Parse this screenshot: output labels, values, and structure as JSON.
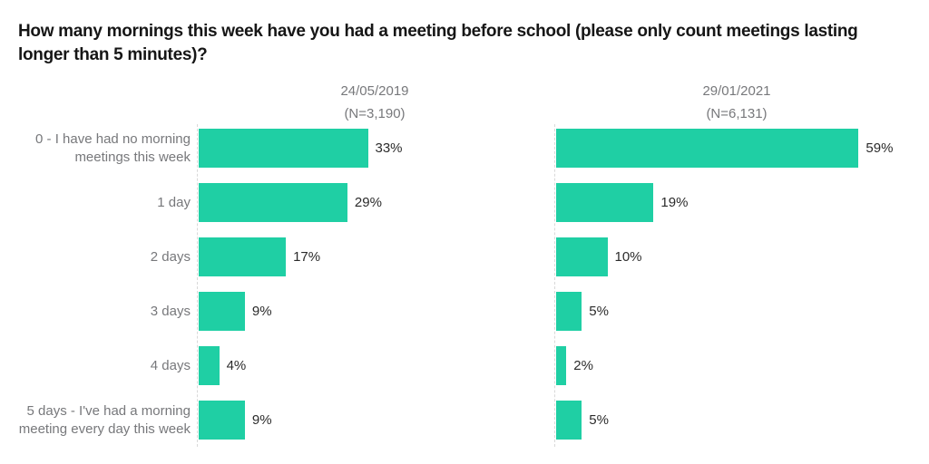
{
  "title": "How many mornings this week have you had a meeting before school (please only count meetings lasting longer than 5 minutes)?",
  "colors": {
    "bar": "#1fcfa4",
    "title_text": "#161616",
    "label_text": "#77787b",
    "value_text": "#2b2b2b",
    "axis_line": "#d9d9d9"
  },
  "chart_data": {
    "type": "bar",
    "orientation": "horizontal",
    "title": "How many mornings this week have you had a meeting before school (please only count meetings lasting longer than 5 minutes)?",
    "categories": [
      "0 - I have had no morning meetings this week",
      "1 day",
      "2 days",
      "3 days",
      "4 days",
      "5 days - I've had a morning meeting every day this week"
    ],
    "series": [
      {
        "name": "24/05/2019",
        "n_label": "(N=3,190)",
        "values": [
          33,
          29,
          17,
          9,
          4,
          9
        ]
      },
      {
        "name": "29/01/2021",
        "n_label": "(N=6,131)",
        "values": [
          59,
          19,
          10,
          5,
          2,
          5
        ]
      }
    ],
    "value_suffix": "%",
    "xlim": [
      0,
      100
    ],
    "grid": false,
    "data_labels": true,
    "legend_position": "column-headers"
  }
}
